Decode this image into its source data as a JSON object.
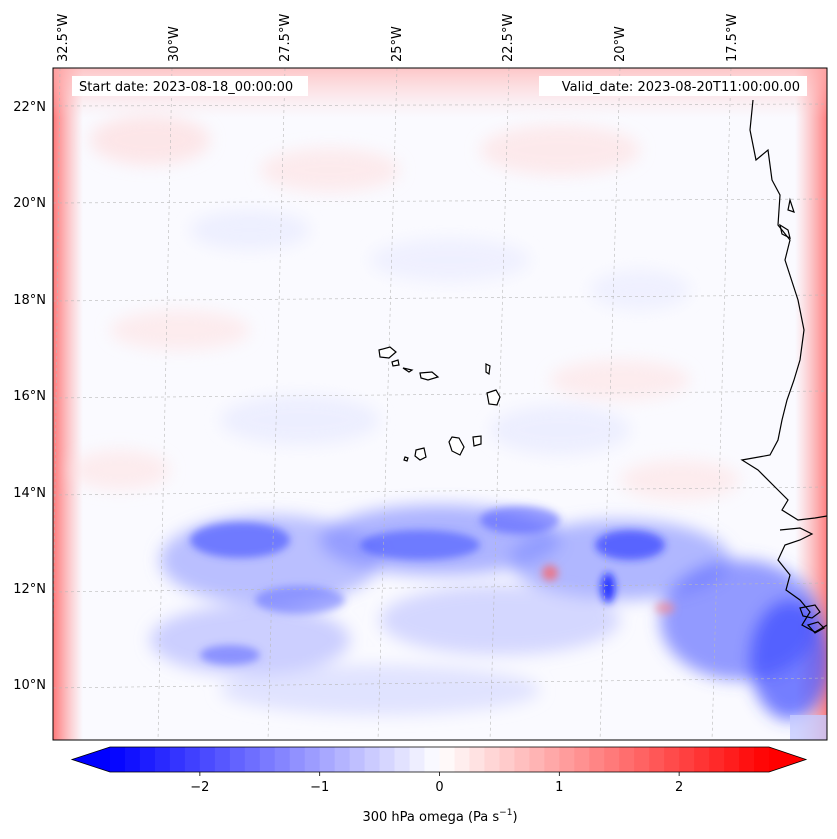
{
  "header": {
    "start_date": "Start date: 2023-08-18_00:00:00",
    "valid_date": "Valid_date: 2023-08-20T11:00:00.00"
  },
  "axes": {
    "lon_labels": [
      "32.5°W",
      "30°W",
      "27.5°W",
      "25°W",
      "22.5°W",
      "20°W",
      "17.5°W"
    ],
    "lat_labels": [
      "22°N",
      "20°N",
      "18°N",
      "16°N",
      "14°N",
      "12°N",
      "10°N"
    ]
  },
  "colorbar": {
    "min": -2.75,
    "max": 2.75,
    "ticks": [
      -2,
      -1,
      0,
      1,
      2
    ],
    "tick_labels": [
      "−2",
      "−1",
      "0",
      "1",
      "2"
    ],
    "label_main": "300 hPa omega (Pa s",
    "label_exp": "−1",
    "label_end": ")",
    "low_color": "#0000ff",
    "mid_color": "#ffffff",
    "high_color": "#ff0000"
  },
  "map": {
    "land_color": "#ffffff",
    "coast_color": "#000000",
    "grid_color": "#b0b0b0"
  }
}
